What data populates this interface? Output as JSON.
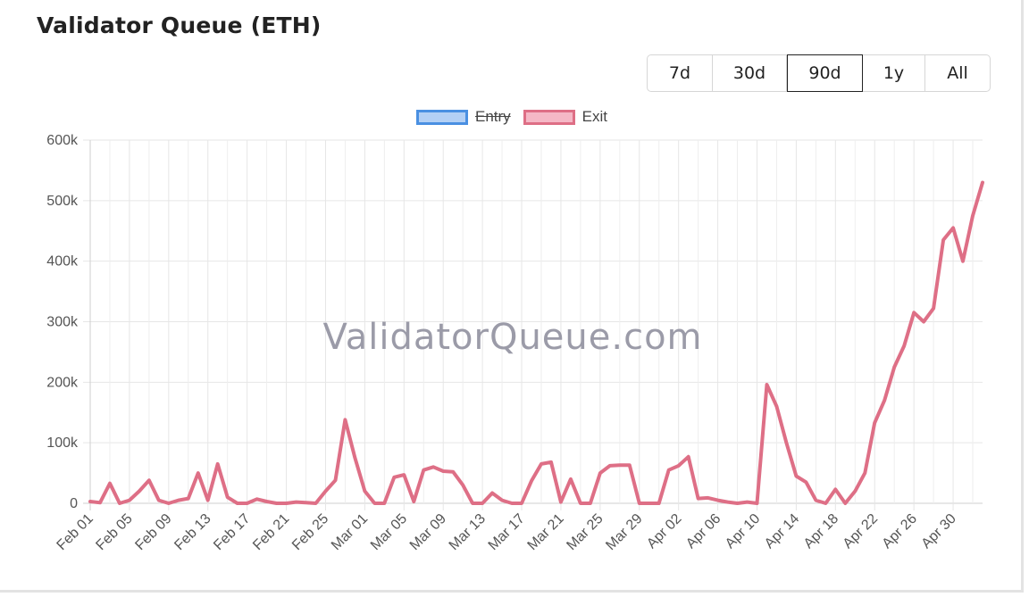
{
  "title": "Validator Queue (ETH)",
  "range_buttons": [
    {
      "label": "7d",
      "active": false
    },
    {
      "label": "30d",
      "active": false
    },
    {
      "label": "90d",
      "active": true
    },
    {
      "label": "1y",
      "active": false
    },
    {
      "label": "All",
      "active": false
    }
  ],
  "watermark": "ValidatorQueue.com",
  "chart_data": {
    "type": "line",
    "ylim": [
      0,
      600000
    ],
    "y_ticks": [
      {
        "value": 0,
        "label": "0"
      },
      {
        "value": 100000,
        "label": "100k"
      },
      {
        "value": 200000,
        "label": "200k"
      },
      {
        "value": 300000,
        "label": "300k"
      },
      {
        "value": 400000,
        "label": "400k"
      },
      {
        "value": 500000,
        "label": "500k"
      },
      {
        "value": 600000,
        "label": "600k"
      }
    ],
    "x_ticks": [
      "Feb 01",
      "Feb 05",
      "Feb 09",
      "Feb 13",
      "Feb 17",
      "Feb 21",
      "Feb 25",
      "Mar 01",
      "Mar 05",
      "Mar 09",
      "Mar 13",
      "Mar 17",
      "Mar 21",
      "Mar 25",
      "Mar 29",
      "Apr 02",
      "Apr 06",
      "Apr 10",
      "Apr 14",
      "Apr 18",
      "Apr 22",
      "Apr 26",
      "Apr 30"
    ],
    "x_start": "Feb 01",
    "grid": true,
    "legend_position": "top-center",
    "series": [
      {
        "name": "Entry",
        "hidden": true,
        "color": "#4a90e2",
        "fill": "#b3d0f5",
        "values": []
      },
      {
        "name": "Exit",
        "hidden": false,
        "color": "#de6f86",
        "fill": "#f5b8c6",
        "values": [
          3000,
          1000,
          33000,
          0,
          5000,
          20000,
          38000,
          5000,
          0,
          5000,
          8000,
          50000,
          5000,
          65000,
          10000,
          0,
          0,
          7000,
          3000,
          0,
          0,
          2000,
          1000,
          0,
          20000,
          38000,
          138000,
          75000,
          20000,
          0,
          0,
          43000,
          47000,
          3000,
          55000,
          60000,
          53000,
          52000,
          30000,
          0,
          0,
          17000,
          5000,
          0,
          0,
          37000,
          65000,
          68000,
          2000,
          40000,
          0,
          0,
          50000,
          62000,
          63000,
          63000,
          0,
          0,
          0,
          55000,
          62000,
          77000,
          8000,
          9000,
          5000,
          2000,
          0,
          2000,
          0,
          196000,
          160000,
          100000,
          45000,
          35000,
          5000,
          0,
          23000,
          0,
          20000,
          50000,
          133000,
          170000,
          225000,
          260000,
          315000,
          300000,
          322000,
          435000,
          455000,
          400000,
          475000,
          530000
        ]
      }
    ]
  }
}
